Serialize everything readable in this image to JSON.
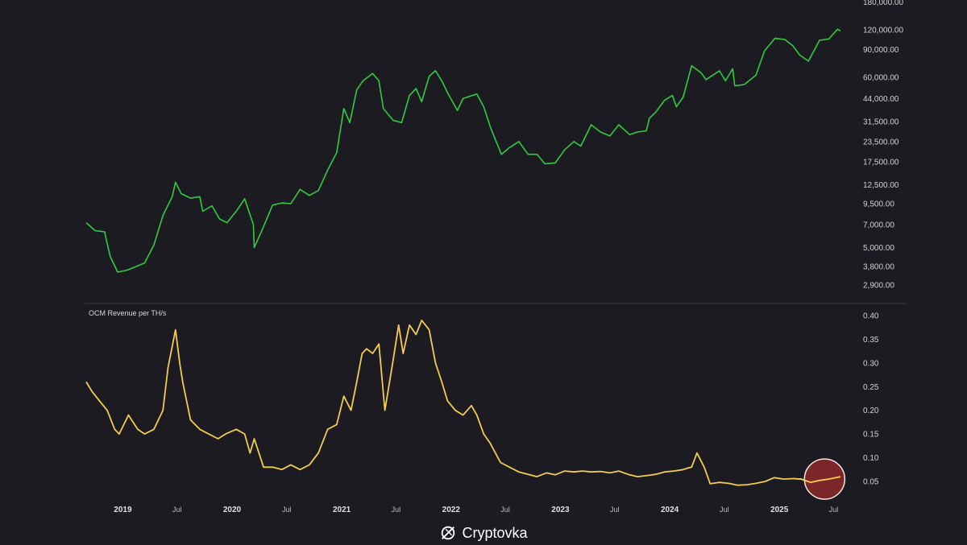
{
  "chart_data": [
    {
      "type": "line",
      "scale": "log",
      "ylabel": "",
      "series": [
        {
          "color": "#2ecc40",
          "x": [
            "2018-09-01",
            "2018-10-01",
            "2018-11-01",
            "2018-11-20",
            "2018-12-15",
            "2019-01-15",
            "2019-02-15",
            "2019-03-15",
            "2019-04-15",
            "2019-05-15",
            "2019-06-15",
            "2019-06-26",
            "2019-07-15",
            "2019-08-15",
            "2019-09-15",
            "2019-09-25",
            "2019-10-26",
            "2019-11-20",
            "2019-12-15",
            "2020-01-15",
            "2020-02-12",
            "2020-03-12",
            "2020-03-15",
            "2020-04-15",
            "2020-05-15",
            "2020-06-15",
            "2020-07-15",
            "2020-08-15",
            "2020-09-15",
            "2020-10-15",
            "2020-11-15",
            "2020-12-15",
            "2021-01-08",
            "2021-01-28",
            "2021-02-20",
            "2021-03-13",
            "2021-04-14",
            "2021-05-05",
            "2021-05-20",
            "2021-06-22",
            "2021-07-20",
            "2021-08-15",
            "2021-09-06",
            "2021-09-25",
            "2021-10-20",
            "2021-11-10",
            "2021-12-01",
            "2021-12-20",
            "2022-01-22",
            "2022-02-10",
            "2022-03-28",
            "2022-04-20",
            "2022-05-12",
            "2022-06-18",
            "2022-07-15",
            "2022-08-15",
            "2022-09-15",
            "2022-10-15",
            "2022-11-10",
            "2022-12-15",
            "2023-01-15",
            "2023-02-15",
            "2023-03-10",
            "2023-04-14",
            "2023-05-15",
            "2023-06-15",
            "2023-07-15",
            "2023-08-20",
            "2023-09-15",
            "2023-10-15",
            "2023-10-25",
            "2023-11-15",
            "2023-12-15",
            "2024-01-10",
            "2024-01-23",
            "2024-02-15",
            "2024-03-14",
            "2024-04-15",
            "2024-05-01",
            "2024-06-15",
            "2024-07-05",
            "2024-07-29",
            "2024-08-05",
            "2024-09-06",
            "2024-10-15",
            "2024-11-12",
            "2024-12-17",
            "2025-01-20",
            "2025-02-15",
            "2025-03-10",
            "2025-04-08",
            "2025-05-15",
            "2025-06-15",
            "2025-07-14",
            "2025-07-24"
          ],
          "y": [
            7200,
            6400,
            6300,
            4400,
            3500,
            3600,
            3800,
            4000,
            5200,
            8000,
            10500,
            13000,
            11000,
            10300,
            10500,
            8500,
            9200,
            7600,
            7200,
            8500,
            10200,
            7000,
            5000,
            6800,
            9300,
            9600,
            9500,
            11700,
            10700,
            11500,
            15500,
            20000,
            38000,
            31000,
            50000,
            57000,
            63500,
            57000,
            38000,
            32000,
            31000,
            46000,
            51000,
            42000,
            61000,
            66000,
            57000,
            48000,
            37000,
            44000,
            47000,
            39000,
            29000,
            19500,
            21500,
            23500,
            19500,
            19500,
            17000,
            17200,
            20800,
            23500,
            22000,
            30000,
            27000,
            25500,
            30000,
            26000,
            27000,
            27500,
            33000,
            36000,
            43000,
            46000,
            39000,
            45000,
            71000,
            64000,
            58000,
            66000,
            57000,
            68000,
            53000,
            54000,
            62000,
            88000,
            106000,
            104000,
            95000,
            83000,
            76000,
            103000,
            105000,
            121000,
            118000
          ]
        }
      ],
      "yticks": [
        "2,900.00",
        "3,800.00",
        "5,000.00",
        "7,000.00",
        "9,500.00",
        "12,500.00",
        "17,500.00",
        "23,500.00",
        "31,500.00",
        "44,000.00",
        "60,000.00",
        "90,000.00",
        "120,000.00",
        "180,000.00"
      ]
    },
    {
      "type": "line",
      "title": "OCM Revenue per TH/s",
      "series": [
        {
          "color": "#f2cd4b",
          "x": [
            "2018-09-01",
            "2018-09-20",
            "2018-10-15",
            "2018-11-10",
            "2018-12-05",
            "2018-12-20",
            "2019-01-20",
            "2019-02-20",
            "2019-03-15",
            "2019-04-15",
            "2019-05-15",
            "2019-06-01",
            "2019-06-26",
            "2019-07-10",
            "2019-07-20",
            "2019-08-15",
            "2019-09-15",
            "2019-10-15",
            "2019-11-15",
            "2019-12-10",
            "2020-01-15",
            "2020-02-12",
            "2020-03-01",
            "2020-03-15",
            "2020-04-15",
            "2020-05-15",
            "2020-06-15",
            "2020-07-15",
            "2020-08-15",
            "2020-09-15",
            "2020-10-15",
            "2020-11-15",
            "2020-12-15",
            "2021-01-08",
            "2021-02-01",
            "2021-02-20",
            "2021-03-10",
            "2021-03-25",
            "2021-04-14",
            "2021-05-05",
            "2021-05-25",
            "2021-06-20",
            "2021-07-10",
            "2021-07-25",
            "2021-08-15",
            "2021-09-06",
            "2021-09-25",
            "2021-10-20",
            "2021-11-10",
            "2021-12-01",
            "2021-12-20",
            "2022-01-15",
            "2022-02-10",
            "2022-03-10",
            "2022-03-28",
            "2022-04-20",
            "2022-05-12",
            "2022-06-15",
            "2022-07-15",
            "2022-08-15",
            "2022-09-15",
            "2022-10-15",
            "2022-11-15",
            "2022-12-15",
            "2023-01-15",
            "2023-02-15",
            "2023-03-15",
            "2023-04-15",
            "2023-05-15",
            "2023-06-15",
            "2023-07-15",
            "2023-08-15",
            "2023-09-15",
            "2023-10-15",
            "2023-11-15",
            "2023-12-15",
            "2024-01-15",
            "2024-02-15",
            "2024-03-01",
            "2024-03-14",
            "2024-04-01",
            "2024-04-25",
            "2024-05-15",
            "2024-06-15",
            "2024-07-15",
            "2024-08-15",
            "2024-09-15",
            "2024-10-15",
            "2024-11-15",
            "2024-12-15",
            "2025-01-15",
            "2025-02-15",
            "2025-03-15",
            "2025-04-15",
            "2025-05-15",
            "2025-06-15",
            "2025-07-24"
          ],
          "y": [
            0.26,
            0.24,
            0.22,
            0.2,
            0.16,
            0.15,
            0.19,
            0.16,
            0.15,
            0.16,
            0.2,
            0.29,
            0.37,
            0.3,
            0.26,
            0.18,
            0.16,
            0.15,
            0.14,
            0.15,
            0.16,
            0.15,
            0.11,
            0.14,
            0.08,
            0.08,
            0.075,
            0.085,
            0.075,
            0.085,
            0.11,
            0.16,
            0.17,
            0.23,
            0.2,
            0.26,
            0.32,
            0.33,
            0.32,
            0.34,
            0.2,
            0.3,
            0.38,
            0.32,
            0.38,
            0.36,
            0.39,
            0.37,
            0.3,
            0.26,
            0.22,
            0.2,
            0.19,
            0.21,
            0.19,
            0.15,
            0.13,
            0.09,
            0.08,
            0.07,
            0.065,
            0.06,
            0.068,
            0.064,
            0.072,
            0.07,
            0.072,
            0.07,
            0.071,
            0.068,
            0.072,
            0.065,
            0.06,
            0.062,
            0.065,
            0.07,
            0.072,
            0.075,
            0.078,
            0.08,
            0.11,
            0.08,
            0.045,
            0.048,
            0.046,
            0.042,
            0.043,
            0.046,
            0.05,
            0.058,
            0.055,
            0.056,
            0.055,
            0.048,
            0.052,
            0.055,
            0.06
          ]
        }
      ],
      "yticks": [
        "0.05",
        "0.10",
        "0.15",
        "0.20",
        "0.25",
        "0.30",
        "0.35",
        "0.40"
      ],
      "highlight": {
        "x": "2025-06-01",
        "y": 0.055,
        "color": "#9b2b2b"
      }
    }
  ],
  "x_axis": {
    "ticks": [
      {
        "label": "2019",
        "date": "2019-01-01",
        "year": true
      },
      {
        "label": "Jul",
        "date": "2019-07-01",
        "year": false
      },
      {
        "label": "2020",
        "date": "2020-01-01",
        "year": true
      },
      {
        "label": "Jul",
        "date": "2020-07-01",
        "year": false
      },
      {
        "label": "2021",
        "date": "2021-01-01",
        "year": true
      },
      {
        "label": "Jul",
        "date": "2021-07-01",
        "year": false
      },
      {
        "label": "2022",
        "date": "2022-01-01",
        "year": true
      },
      {
        "label": "Jul",
        "date": "2022-07-01",
        "year": false
      },
      {
        "label": "2023",
        "date": "2023-01-01",
        "year": true
      },
      {
        "label": "Jul",
        "date": "2023-07-01",
        "year": false
      },
      {
        "label": "2024",
        "date": "2024-01-01",
        "year": true
      },
      {
        "label": "Jul",
        "date": "2024-07-01",
        "year": false
      },
      {
        "label": "2025",
        "date": "2025-01-01",
        "year": true
      },
      {
        "label": "Jul",
        "date": "2025-07-01",
        "year": false
      }
    ]
  },
  "watermark": {
    "text": "Cryptovka",
    "icon": "cryptovka-logo-icon"
  }
}
